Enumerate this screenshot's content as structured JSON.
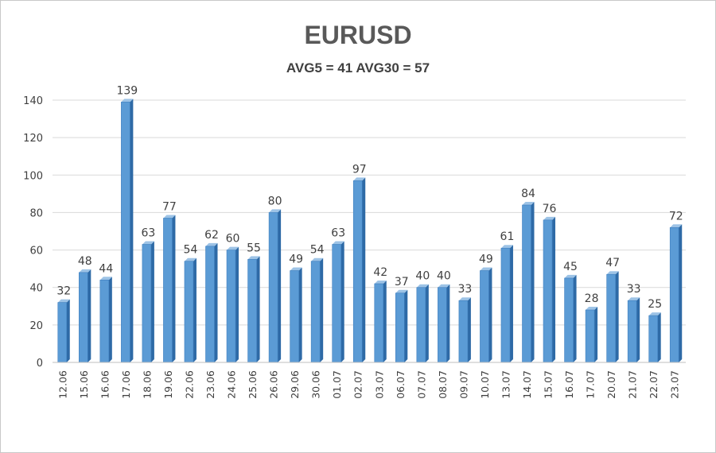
{
  "chart_data": {
    "type": "bar",
    "title": "EURUSD",
    "subtitle": "AVG5 = 41 AVG30 = 57",
    "categories": [
      "12.06",
      "15.06",
      "16.06",
      "17.06",
      "18.06",
      "19.06",
      "22.06",
      "23.06",
      "24.06",
      "25.06",
      "26.06",
      "29.06",
      "30.06",
      "01.07",
      "02.07",
      "03.07",
      "06.07",
      "07.07",
      "08.07",
      "09.07",
      "10.07",
      "13.07",
      "14.07",
      "15.07",
      "16.07",
      "17.07",
      "20.07",
      "21.07",
      "22.07",
      "23.07"
    ],
    "values": [
      32,
      48,
      44,
      139,
      63,
      77,
      54,
      62,
      60,
      55,
      80,
      49,
      54,
      63,
      97,
      42,
      37,
      40,
      40,
      33,
      49,
      61,
      84,
      76,
      45,
      28,
      47,
      33,
      25,
      72
    ],
    "ylim": [
      0,
      140
    ],
    "yticks": [
      0,
      20,
      40,
      60,
      80,
      100,
      120,
      140
    ],
    "grid": true,
    "legend": "none",
    "data_labels": true,
    "colors": {
      "bar_front": "#5b9bd5",
      "bar_side": "#2e6aa6",
      "bar_top": "#9dc3e6",
      "grid": "#d9d9d9",
      "axis_text": "#404040"
    }
  }
}
